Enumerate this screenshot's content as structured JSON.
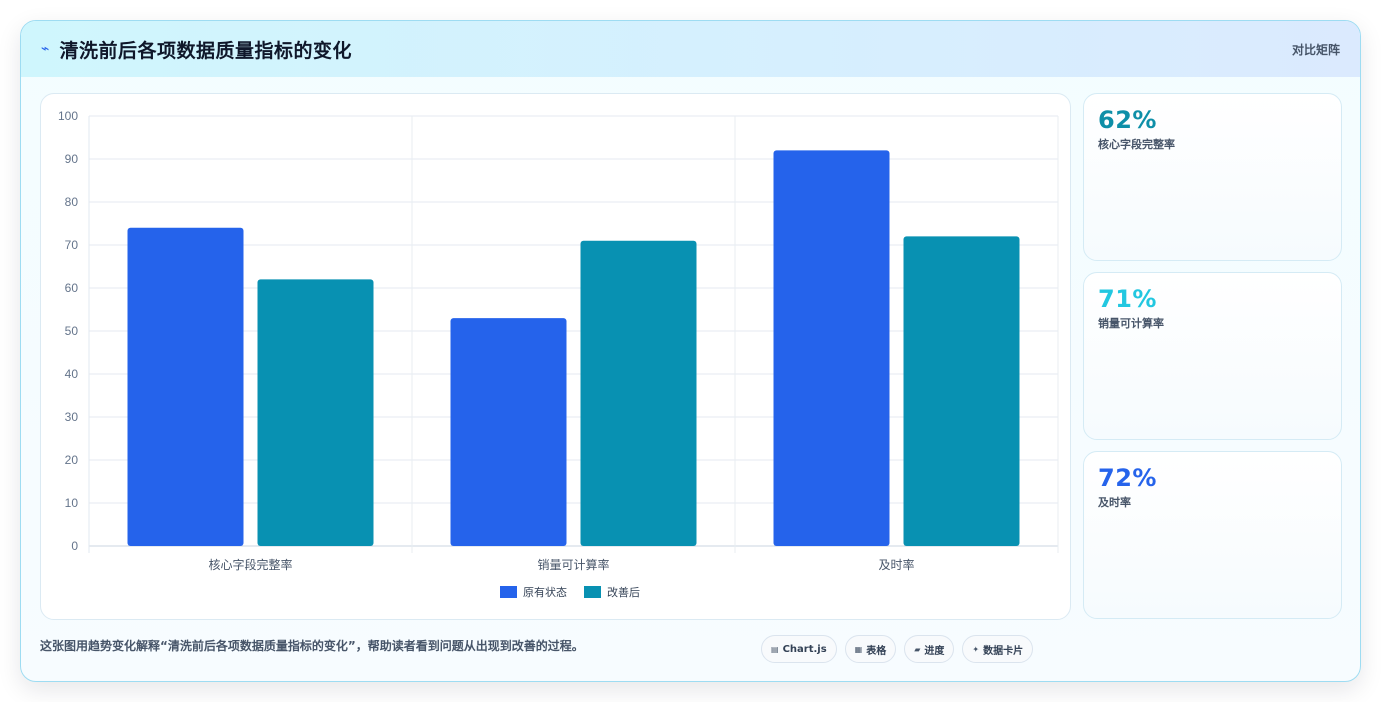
{
  "header": {
    "title": "清洗前后各项数据质量指标的变化",
    "link": "对比矩阵",
    "icon": "line-chart-icon"
  },
  "chart_data": {
    "type": "bar",
    "categories": [
      "核心字段完整率",
      "销量可计算率",
      "及时率"
    ],
    "series": [
      {
        "name": "原有状态",
        "values": [
          74,
          53,
          92
        ],
        "color": "#2563eb"
      },
      {
        "name": "改善后",
        "values": [
          62,
          71,
          72
        ],
        "color": "#0891b2"
      }
    ],
    "ylim": [
      0,
      100
    ],
    "yticks": [
      0,
      10,
      20,
      30,
      40,
      50,
      60,
      70,
      80,
      90,
      100
    ],
    "grid": true,
    "legend": "bottom"
  },
  "stats": [
    {
      "value": "62%",
      "label": "核心字段完整率",
      "color": "#0e8fa8"
    },
    {
      "value": "71%",
      "label": "销量可计算率",
      "color": "#22c7e0"
    },
    {
      "value": "72%",
      "label": "及时率",
      "color": "#2563eb"
    }
  ],
  "footer": {
    "text": "这张图用趋势变化解释“清洗前后各项数据质量指标的变化”，帮助读者看到问题从出现到改善的过程。"
  },
  "chips": [
    {
      "label": "Chart.js",
      "icon": "chart-icon"
    },
    {
      "label": "表格",
      "icon": "table-icon"
    },
    {
      "label": "进度",
      "icon": "progress-icon"
    },
    {
      "label": "数据卡片",
      "icon": "sparkle-icon"
    }
  ]
}
